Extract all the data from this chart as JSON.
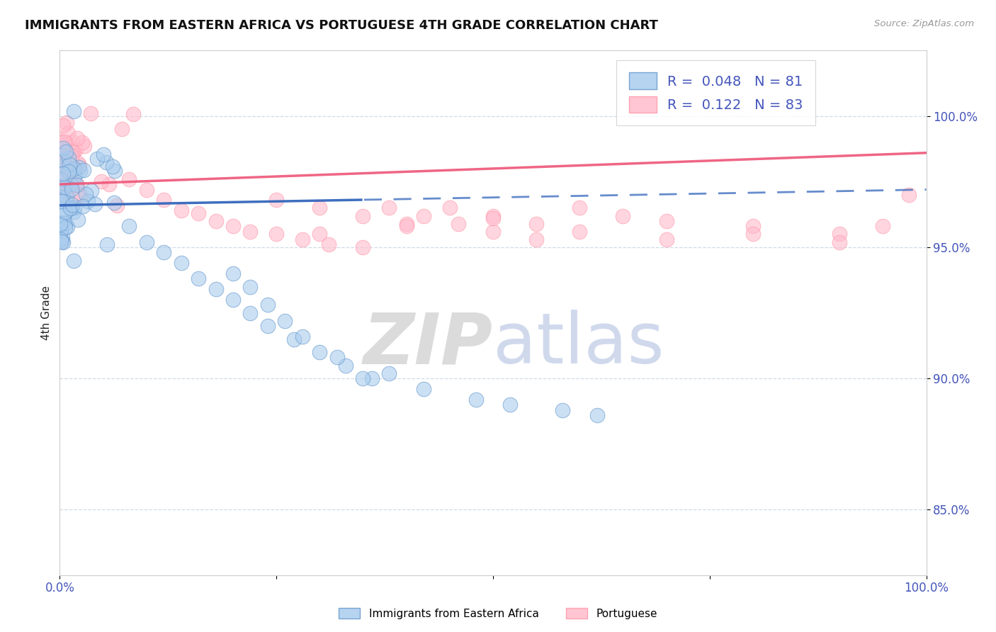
{
  "title": "IMMIGRANTS FROM EASTERN AFRICA VS PORTUGUESE 4TH GRADE CORRELATION CHART",
  "source_text": "Source: ZipAtlas.com",
  "ylabel": "4th Grade",
  "x_min": 0.0,
  "x_max": 1.0,
  "y_min": 0.825,
  "y_max": 1.025,
  "yticks": [
    0.85,
    0.9,
    0.95,
    1.0
  ],
  "ytick_labels": [
    "85.0%",
    "90.0%",
    "95.0%",
    "100.0%"
  ],
  "xtick_labels": [
    "0.0%",
    "100.0%"
  ],
  "legend_r_blue": "R =  0.048",
  "legend_n_blue": "N = 81",
  "legend_r_pink": "R =  0.122",
  "legend_n_pink": "N = 83",
  "legend_label_blue": "Immigrants from Eastern Africa",
  "legend_label_pink": "Portuguese",
  "blue_face_color": "#AACCEE",
  "pink_face_color": "#FFBBCC",
  "blue_edge_color": "#6699CC",
  "pink_edge_color": "#FF99AA",
  "blue_line_color": "#3366BB",
  "pink_line_color": "#EE5577",
  "grid_color": "#BBCCDD",
  "tick_color": "#4455BB",
  "watermark_zip_color": "#CCCCCC",
  "watermark_atlas_color": "#AABBDD",
  "blue_scatter_x": [
    0.0005,
    0.001,
    0.001,
    0.001,
    0.002,
    0.002,
    0.002,
    0.003,
    0.003,
    0.003,
    0.004,
    0.004,
    0.005,
    0.005,
    0.006,
    0.006,
    0.007,
    0.007,
    0.008,
    0.008,
    0.009,
    0.01,
    0.01,
    0.011,
    0.012,
    0.012,
    0.013,
    0.014,
    0.015,
    0.015,
    0.016,
    0.017,
    0.018,
    0.019,
    0.02,
    0.021,
    0.022,
    0.023,
    0.025,
    0.026,
    0.028,
    0.03,
    0.032,
    0.035,
    0.038,
    0.042,
    0.046,
    0.05,
    0.055,
    0.06,
    0.065,
    0.07,
    0.075,
    0.08,
    0.09,
    0.1,
    0.11,
    0.12,
    0.13,
    0.15,
    0.17,
    0.19,
    0.21,
    0.23,
    0.25,
    0.27,
    0.29,
    0.31,
    0.33,
    0.37,
    0.4,
    0.43,
    0.46,
    0.49,
    0.52,
    0.55,
    0.58,
    0.61,
    0.64,
    0.67,
    0.7
  ],
  "blue_scatter_y": [
    0.974,
    0.976,
    0.973,
    0.971,
    0.975,
    0.972,
    0.97,
    0.974,
    0.971,
    0.969,
    0.972,
    0.97,
    0.971,
    0.969,
    0.97,
    0.968,
    0.969,
    0.967,
    0.968,
    0.966,
    0.967,
    0.969,
    0.967,
    0.965,
    0.968,
    0.966,
    0.964,
    0.963,
    0.965,
    0.963,
    0.962,
    0.961,
    0.96,
    0.959,
    0.965,
    0.963,
    0.962,
    0.961,
    0.96,
    0.959,
    0.958,
    0.962,
    0.96,
    0.958,
    0.956,
    0.957,
    0.955,
    0.96,
    0.958,
    0.956,
    0.954,
    0.952,
    0.95,
    0.948,
    0.946,
    0.944,
    0.942,
    0.94,
    0.938,
    0.934,
    0.93,
    0.926,
    0.922,
    0.918,
    0.914,
    0.91,
    0.906,
    0.902,
    0.898,
    0.893,
    0.89,
    0.888,
    0.886,
    0.884,
    0.882,
    0.88,
    0.878,
    0.876,
    0.874,
    0.872,
    0.87
  ],
  "pink_scatter_x": [
    0.0005,
    0.001,
    0.001,
    0.002,
    0.002,
    0.003,
    0.003,
    0.004,
    0.004,
    0.005,
    0.005,
    0.006,
    0.006,
    0.007,
    0.007,
    0.008,
    0.008,
    0.009,
    0.01,
    0.01,
    0.011,
    0.012,
    0.013,
    0.014,
    0.015,
    0.016,
    0.018,
    0.02,
    0.022,
    0.025,
    0.028,
    0.03,
    0.033,
    0.036,
    0.04,
    0.043,
    0.047,
    0.05,
    0.055,
    0.06,
    0.065,
    0.07,
    0.075,
    0.08,
    0.085,
    0.09,
    0.095,
    0.1,
    0.11,
    0.12,
    0.13,
    0.14,
    0.15,
    0.16,
    0.17,
    0.18,
    0.2,
    0.22,
    0.24,
    0.26,
    0.28,
    0.3,
    0.32,
    0.34,
    0.36,
    0.38,
    0.4,
    0.42,
    0.45,
    0.48,
    0.52,
    0.56,
    0.6,
    0.65,
    0.7,
    0.75,
    0.8,
    0.85,
    0.9,
    0.94,
    0.97,
    0.99,
    0.998
  ],
  "pink_scatter_y": [
    0.993,
    0.995,
    0.991,
    0.994,
    0.99,
    0.993,
    0.989,
    0.992,
    0.988,
    0.991,
    0.987,
    0.99,
    0.986,
    0.989,
    0.985,
    0.988,
    0.984,
    0.987,
    0.99,
    0.986,
    0.988,
    0.985,
    0.987,
    0.984,
    0.986,
    0.983,
    0.985,
    0.987,
    0.984,
    0.986,
    0.983,
    0.985,
    0.982,
    0.984,
    0.981,
    0.983,
    0.98,
    0.982,
    0.979,
    0.981,
    0.978,
    0.98,
    0.977,
    0.979,
    0.976,
    0.978,
    0.975,
    0.977,
    0.974,
    0.972,
    0.973,
    0.971,
    0.972,
    0.97,
    0.971,
    0.969,
    0.97,
    0.968,
    0.969,
    0.967,
    0.968,
    0.966,
    0.967,
    0.965,
    0.966,
    0.964,
    0.965,
    0.963,
    0.964,
    0.962,
    0.963,
    0.961,
    0.962,
    0.96,
    0.961,
    0.959,
    0.96,
    0.958,
    0.959,
    0.957,
    0.959,
    0.956,
    0.958
  ]
}
